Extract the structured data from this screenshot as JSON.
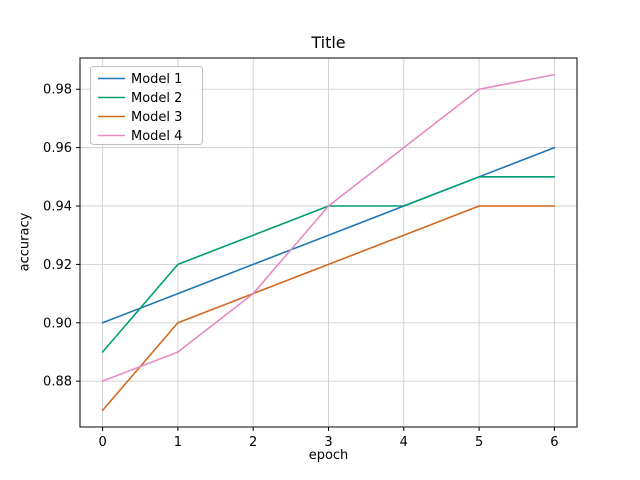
{
  "chart_data": {
    "type": "line",
    "title": "Title",
    "xlabel": "epoch",
    "ylabel": "accuracy",
    "x": [
      0,
      1,
      2,
      3,
      4,
      5,
      6
    ],
    "series": [
      {
        "name": "Model 1",
        "color": "#1f77b4",
        "values": [
          0.9,
          0.91,
          0.92,
          0.93,
          0.94,
          0.95,
          0.96
        ]
      },
      {
        "name": "Model 2",
        "color": "#029e73",
        "values": [
          0.89,
          0.92,
          0.93,
          0.94,
          0.94,
          0.95,
          0.95
        ]
      },
      {
        "name": "Model 3",
        "color": "#d2691e",
        "values": [
          0.87,
          0.9,
          0.91,
          0.92,
          0.93,
          0.94,
          0.94
        ]
      },
      {
        "name": "Model 4",
        "color": "#e78ac3",
        "values": [
          0.88,
          0.89,
          0.91,
          0.94,
          0.96,
          0.98,
          0.985
        ]
      }
    ],
    "xticks": [
      0,
      1,
      2,
      3,
      4,
      5,
      6
    ],
    "yticks": [
      0.88,
      0.9,
      0.92,
      0.94,
      0.96,
      0.98
    ],
    "xlim": [
      -0.3,
      6.3
    ],
    "ylim": [
      0.8643,
      0.9907
    ],
    "grid": true,
    "legend_position": "upper-left",
    "grid_color": "#cfcfcf",
    "axes_color": "#000000"
  }
}
